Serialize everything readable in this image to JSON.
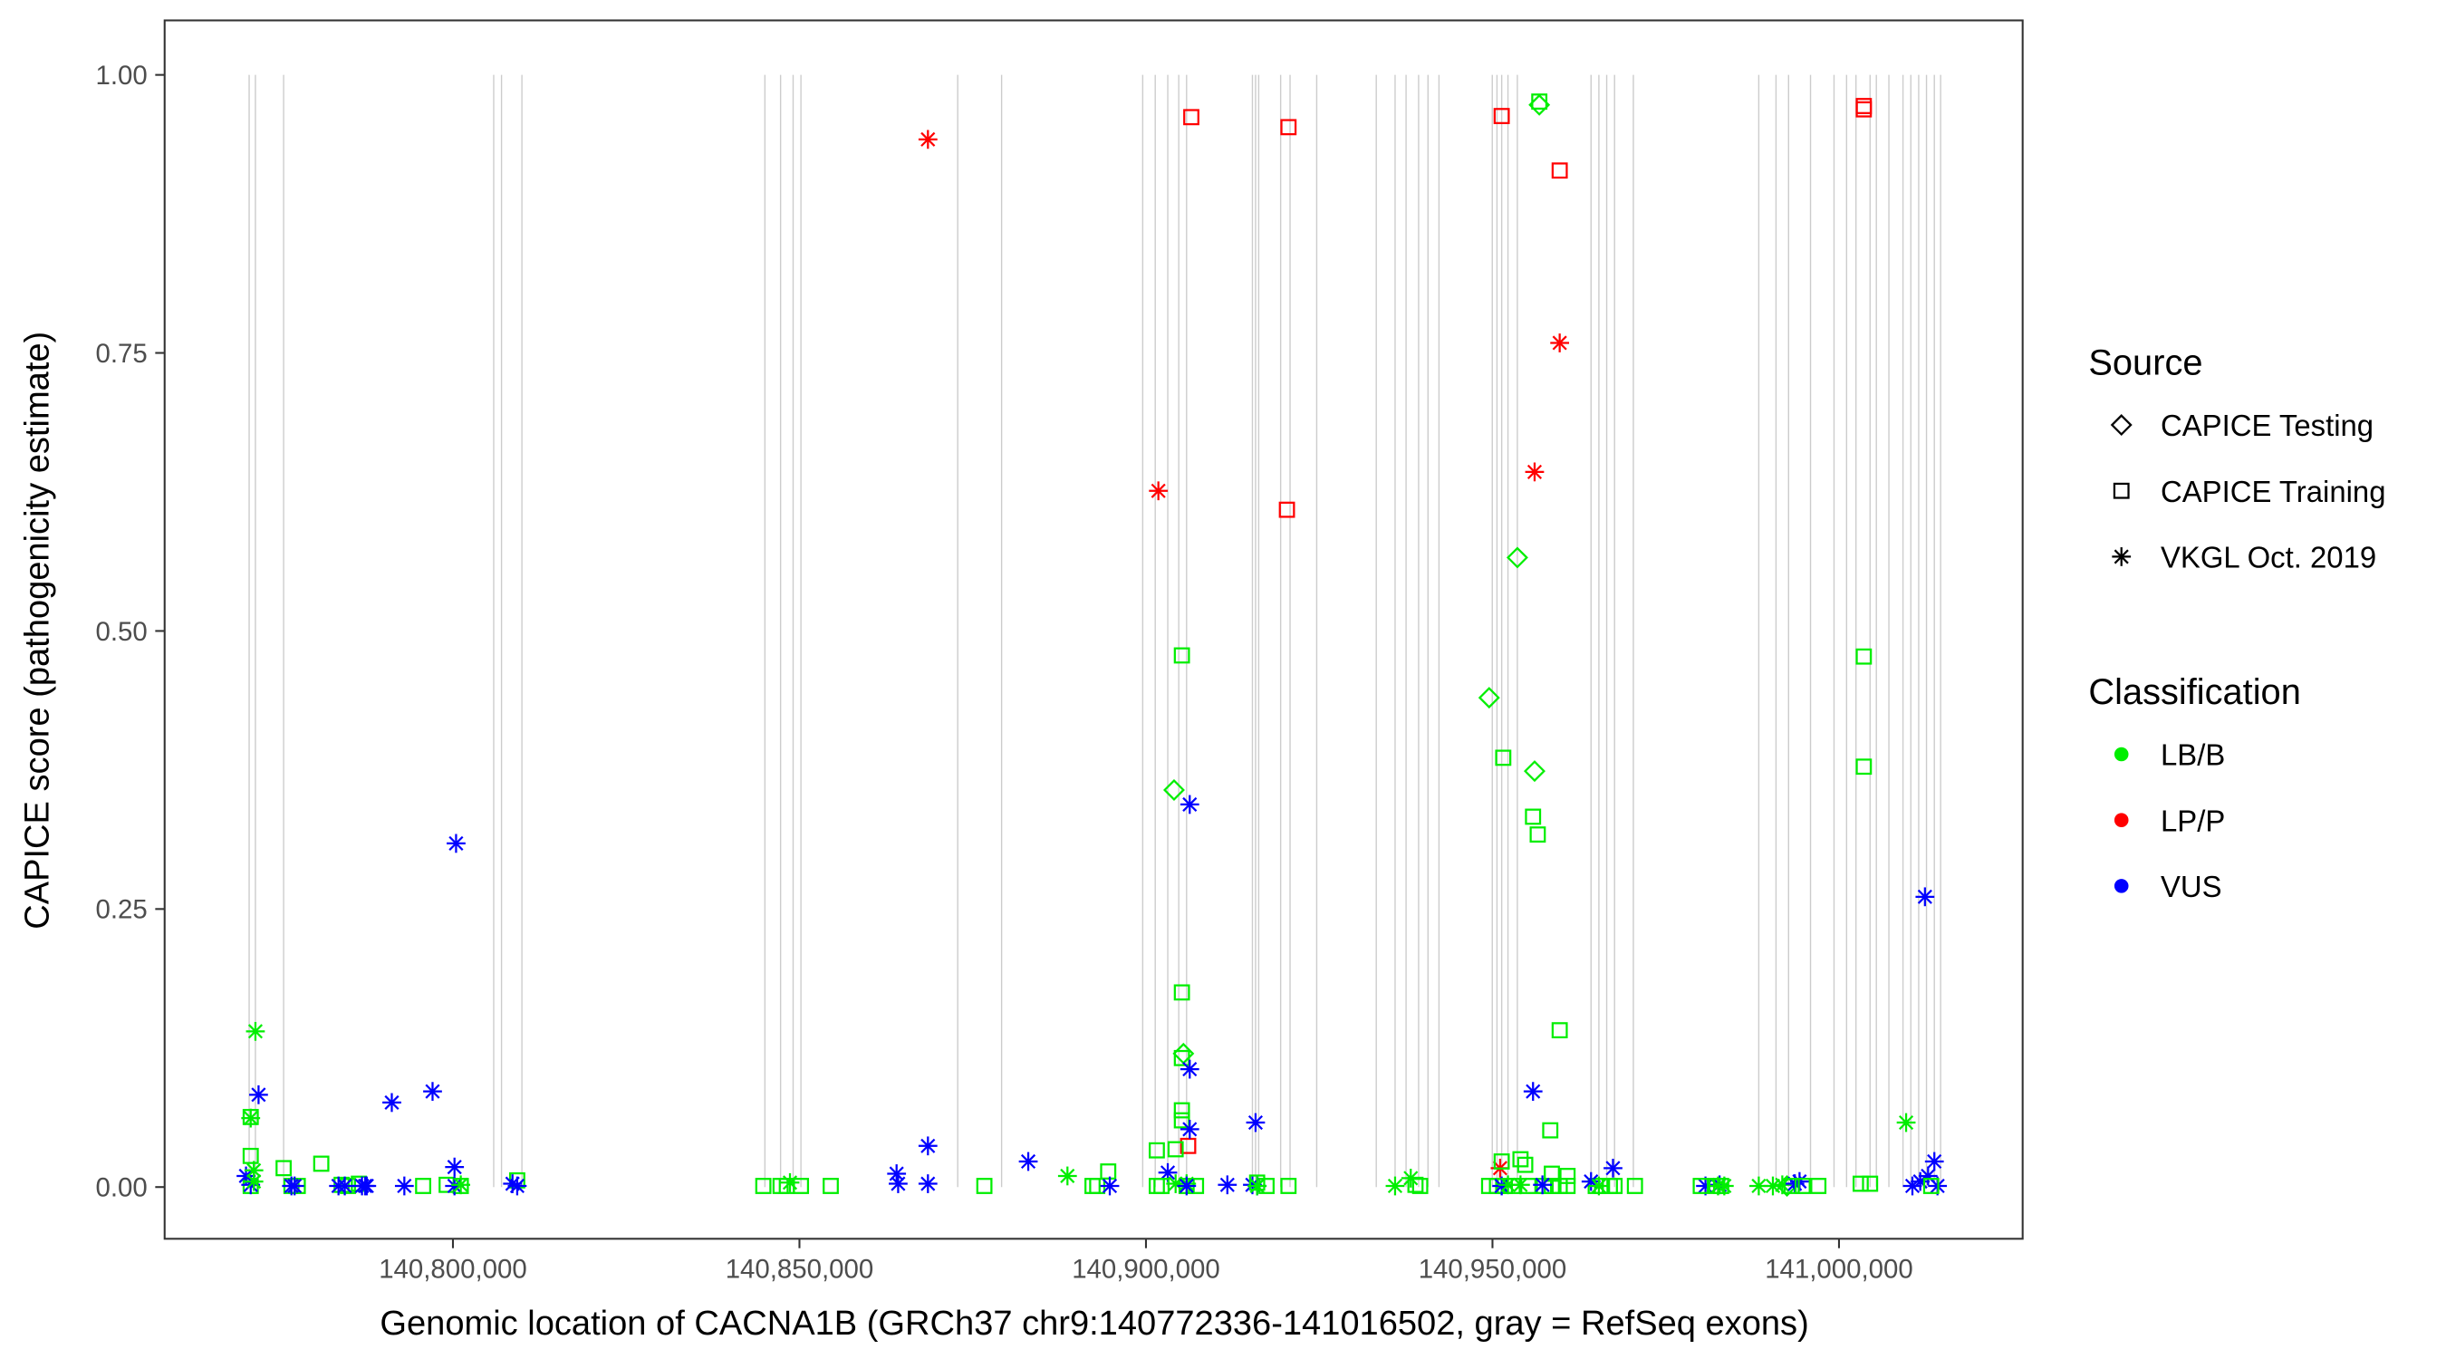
{
  "chart_data": {
    "type": "scatter",
    "xlabel": "Genomic location of CACNA1B (GRCh37 chr9:140772336-141016502, gray = RefSeq exons)",
    "ylabel": "CAPICE score (pathogenicity estimate)",
    "xlim": [
      140758400,
      141026500
    ],
    "ylim": [
      -0.0465,
      1.049
    ],
    "x_ticks": [
      140800000,
      140850000,
      140900000,
      140950000,
      141000000
    ],
    "x_tick_labels": [
      "140,800,000",
      "140,850,000",
      "140,900,000",
      "140,950,000",
      "141,000,000"
    ],
    "y_ticks": [
      0,
      0.25,
      0.5,
      0.75,
      1.0
    ],
    "y_tick_labels": [
      "0.00",
      "0.25",
      "0.50",
      "0.75",
      "1.00"
    ],
    "grid": false,
    "legend_position": "right",
    "legend_source": {
      "title": "Source",
      "items": [
        {
          "label": "CAPICE Testing",
          "shape": "diamond"
        },
        {
          "label": "CAPICE Training",
          "shape": "square"
        },
        {
          "label": "VKGL Oct. 2019",
          "shape": "asterisk"
        }
      ]
    },
    "legend_classification": {
      "title": "Classification",
      "items": [
        {
          "label": "LB/B",
          "color": "#00EE00"
        },
        {
          "label": "LP/P",
          "color": "#FF0000"
        },
        {
          "label": "VUS",
          "color": "#0000FF"
        }
      ]
    },
    "exons": [
      140770594,
      140771499,
      140775570,
      140805881,
      140807012,
      140809953,
      140845014,
      140847276,
      140849085,
      140850216,
      140872836,
      140879170,
      140899528,
      140901338,
      140903147,
      140904731,
      140905862,
      140915362,
      140915814,
      140916267,
      140919434,
      140920791,
      140924636,
      140933232,
      140935946,
      140937530,
      140939339,
      140940697,
      140942280,
      140949971,
      140950649,
      140951328,
      140952233,
      140953590,
      140964221,
      140965352,
      140966483,
      140967614,
      140970329,
      140988425,
      140990913,
      140992723,
      140995889,
      140999282,
      141001092,
      141002449,
      141004485,
      141005390,
      141007199,
      141009235,
      141010366,
      141011497,
      141012628,
      141013759,
      141014664
    ],
    "points_columns": [
      "position",
      "score",
      "source_index",
      "classification_index"
    ],
    "points": [
      [
        140868539,
        0.942,
        2,
        1
      ],
      [
        140906540,
        0.962,
        1,
        1
      ],
      [
        140920565,
        0.953,
        1,
        1
      ],
      [
        140901790,
        0.626,
        2,
        1
      ],
      [
        140920338,
        0.609,
        1,
        1
      ],
      [
        140951328,
        0.963,
        1,
        1
      ],
      [
        140959697,
        0.914,
        1,
        1
      ],
      [
        140959697,
        0.759,
        2,
        1
      ],
      [
        140956078,
        0.643,
        2,
        1
      ],
      [
        141003580,
        0.972,
        1,
        1
      ],
      [
        141003580,
        0.969,
        1,
        1
      ],
      [
        140951102,
        0.017,
        2,
        1
      ],
      [
        140906088,
        0.037,
        1,
        1
      ],
      [
        140956757,
        0.973,
        0,
        0
      ],
      [
        140956757,
        0.976,
        1,
        0
      ],
      [
        140953590,
        0.566,
        0,
        0
      ],
      [
        140949518,
        0.44,
        0,
        0
      ],
      [
        140951554,
        0.386,
        1,
        0
      ],
      [
        140956078,
        0.374,
        0,
        0
      ],
      [
        140955852,
        0.333,
        1,
        0
      ],
      [
        140956530,
        0.317,
        1,
        0
      ],
      [
        140959697,
        0.141,
        1,
        0
      ],
      [
        140958340,
        0.051,
        1,
        0
      ],
      [
        140905183,
        0.478,
        1,
        0
      ],
      [
        140904052,
        0.357,
        0,
        0
      ],
      [
        140905183,
        0.175,
        1,
        0
      ],
      [
        140905409,
        0.12,
        0,
        0
      ],
      [
        140905183,
        0.116,
        1,
        0
      ],
      [
        140905183,
        0.069,
        1,
        0
      ],
      [
        140905183,
        0.06,
        1,
        0
      ],
      [
        141003580,
        0.477,
        1,
        0
      ],
      [
        141003580,
        0.378,
        1,
        0
      ],
      [
        141009687,
        0.058,
        2,
        0
      ],
      [
        140771499,
        0.14,
        2,
        0
      ],
      [
        140770820,
        0.062,
        2,
        0
      ],
      [
        140770820,
        0.063,
        1,
        0
      ],
      [
        140770820,
        0.028,
        1,
        0
      ],
      [
        140775570,
        0.017,
        1,
        0
      ],
      [
        140780999,
        0.021,
        1,
        0
      ],
      [
        140800452,
        0.309,
        2,
        2
      ],
      [
        140906314,
        0.344,
        2,
        2
      ],
      [
        140771951,
        0.083,
        2,
        2
      ],
      [
        140791178,
        0.076,
        2,
        2
      ],
      [
        140797059,
        0.086,
        2,
        2
      ],
      [
        140800226,
        0.018,
        2,
        2
      ],
      [
        140868539,
        0.037,
        2,
        2
      ],
      [
        140883015,
        0.023,
        2,
        2
      ],
      [
        140906314,
        0.106,
        2,
        2
      ],
      [
        140906314,
        0.052,
        2,
        2
      ],
      [
        140915814,
        0.058,
        2,
        2
      ],
      [
        140955852,
        0.086,
        2,
        2
      ],
      [
        141012402,
        0.261,
        2,
        2
      ],
      [
        141013759,
        0.023,
        2,
        2
      ],
      [
        140967388,
        0.017,
        2,
        2
      ],
      [
        140903147,
        0.013,
        2,
        2
      ],
      [
        140770820,
        0.001,
        1,
        0
      ],
      [
        140776701,
        0.001,
        1,
        0
      ],
      [
        140777606,
        0.001,
        1,
        0
      ],
      [
        140783940,
        0.002,
        1,
        0
      ],
      [
        140784845,
        0.001,
        1,
        0
      ],
      [
        140786428,
        0.003,
        1,
        0
      ],
      [
        140795702,
        0.001,
        1,
        0
      ],
      [
        140799095,
        0.002,
        1,
        0
      ],
      [
        140801131,
        0.001,
        1,
        0
      ],
      [
        140809274,
        0.006,
        1,
        0
      ],
      [
        140770142,
        0.01,
        2,
        2
      ],
      [
        140770820,
        0.002,
        2,
        2
      ],
      [
        140776701,
        0.001,
        2,
        2
      ],
      [
        140777154,
        0.001,
        2,
        2
      ],
      [
        140783487,
        0.001,
        2,
        2
      ],
      [
        140784392,
        0.001,
        2,
        2
      ],
      [
        140786880,
        0.001,
        2,
        2
      ],
      [
        140787333,
        0.001,
        2,
        2
      ],
      [
        140787559,
        0.001,
        2,
        2
      ],
      [
        140792988,
        0.001,
        2,
        2
      ],
      [
        140800226,
        0.001,
        2,
        2
      ],
      [
        140808596,
        0.003,
        2,
        2
      ],
      [
        140809274,
        0.001,
        2,
        2
      ],
      [
        140771273,
        0.005,
        2,
        0
      ],
      [
        140771273,
        0.015,
        2,
        0
      ],
      [
        140848633,
        0.004,
        2,
        0
      ],
      [
        140801131,
        0.002,
        2,
        0
      ],
      [
        140844788,
        0.001,
        1,
        0
      ],
      [
        140847276,
        0.001,
        1,
        0
      ],
      [
        140848181,
        0.001,
        1,
        0
      ],
      [
        140850216,
        0.001,
        1,
        0
      ],
      [
        140854514,
        0.001,
        1,
        0
      ],
      [
        140876682,
        0.001,
        1,
        0
      ],
      [
        140864015,
        0.012,
        2,
        2
      ],
      [
        140864241,
        0.003,
        2,
        2
      ],
      [
        140868539,
        0.003,
        2,
        2
      ],
      [
        140888670,
        0.01,
        2,
        0
      ],
      [
        140892290,
        0.001,
        1,
        0
      ],
      [
        140892968,
        0.001,
        1,
        0
      ],
      [
        140894552,
        0.014,
        1,
        0
      ],
      [
        140894778,
        0.001,
        2,
        2
      ],
      [
        140901564,
        0.001,
        1,
        0
      ],
      [
        140901564,
        0.033,
        1,
        0
      ],
      [
        140902242,
        0.001,
        1,
        0
      ],
      [
        140904278,
        0.034,
        1,
        0
      ],
      [
        140905862,
        0.001,
        1,
        0
      ],
      [
        140907219,
        0.001,
        1,
        0
      ],
      [
        140904278,
        0.003,
        2,
        0
      ],
      [
        140905862,
        0.003,
        2,
        0
      ],
      [
        140905862,
        0.001,
        2,
        2
      ],
      [
        140911743,
        0.002,
        2,
        2
      ],
      [
        140915362,
        0.002,
        2,
        2
      ],
      [
        140916041,
        0.001,
        2,
        2
      ],
      [
        140916041,
        0.004,
        1,
        0
      ],
      [
        140917398,
        0.001,
        1,
        0
      ],
      [
        140920565,
        0.001,
        1,
        0
      ],
      [
        140916041,
        0.001,
        2,
        0
      ],
      [
        140935946,
        0.001,
        2,
        0
      ],
      [
        140938208,
        0.008,
        2,
        0
      ],
      [
        140938887,
        0.002,
        1,
        0
      ],
      [
        140939565,
        0.001,
        1,
        0
      ],
      [
        140949518,
        0.001,
        1,
        0
      ],
      [
        140950649,
        0.001,
        1,
        0
      ],
      [
        140951780,
        0.001,
        1,
        0
      ],
      [
        140952911,
        0.001,
        1,
        0
      ],
      [
        140955173,
        0.001,
        1,
        0
      ],
      [
        140957435,
        0.001,
        1,
        0
      ],
      [
        140958566,
        0.001,
        1,
        0
      ],
      [
        140959697,
        0.001,
        1,
        0
      ],
      [
        140960828,
        0.001,
        1,
        0
      ],
      [
        140951328,
        0.023,
        1,
        0
      ],
      [
        140954042,
        0.025,
        1,
        0
      ],
      [
        140954721,
        0.02,
        1,
        0
      ],
      [
        140960828,
        0.01,
        1,
        0
      ],
      [
        140958566,
        0.012,
        1,
        0
      ],
      [
        140951328,
        0.001,
        2,
        2
      ],
      [
        140957209,
        0.002,
        2,
        2
      ],
      [
        140952233,
        0.002,
        2,
        0
      ],
      [
        140954042,
        0.002,
        2,
        0
      ],
      [
        140964900,
        0.001,
        1,
        0
      ],
      [
        140965805,
        0.001,
        1,
        0
      ],
      [
        140966936,
        0.001,
        1,
        0
      ],
      [
        140967614,
        0.001,
        1,
        0
      ],
      [
        140970555,
        0.001,
        1,
        0
      ],
      [
        140964221,
        0.005,
        2,
        2
      ],
      [
        140965352,
        0.001,
        2,
        0
      ],
      [
        140980734,
        0.001,
        2,
        2
      ],
      [
        140982770,
        0.002,
        2,
        2
      ],
      [
        140982543,
        0.001,
        2,
        0
      ],
      [
        140983448,
        0.001,
        2,
        0
      ],
      [
        140980055,
        0.001,
        1,
        0
      ],
      [
        140982317,
        0.001,
        1,
        0
      ],
      [
        140982996,
        0.001,
        1,
        0
      ],
      [
        140988425,
        0.001,
        2,
        0
      ],
      [
        140990460,
        0.001,
        2,
        0
      ],
      [
        140991818,
        0.002,
        2,
        0
      ],
      [
        140992496,
        0.001,
        0,
        0
      ],
      [
        140993627,
        0.003,
        2,
        2
      ],
      [
        140994306,
        0.005,
        2,
        2
      ],
      [
        140994758,
        0.001,
        1,
        0
      ],
      [
        140997020,
        0.001,
        1,
        0
      ],
      [
        140993175,
        0.001,
        1,
        0
      ],
      [
        141003128,
        0.003,
        1,
        0
      ],
      [
        141004485,
        0.003,
        1,
        0
      ],
      [
        141010592,
        0.001,
        2,
        2
      ],
      [
        141011723,
        0.005,
        2,
        2
      ],
      [
        141012854,
        0.01,
        2,
        2
      ],
      [
        141014211,
        0.001,
        2,
        2
      ],
      [
        141013307,
        0.001,
        1,
        0
      ]
    ]
  }
}
